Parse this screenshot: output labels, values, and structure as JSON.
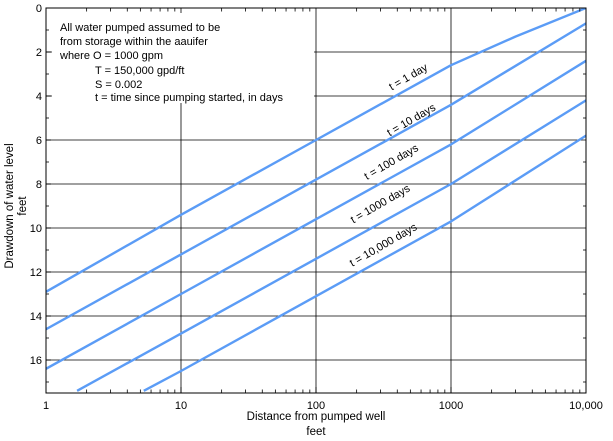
{
  "chart_data": {
    "type": "line",
    "title": "",
    "xlabel_line1": "Distance from pumped well",
    "xlabel_line2": "feet",
    "ylabel_line1": "Drawdown of water level",
    "ylabel_line2": "feet",
    "x_scale": "log",
    "xlim": [
      1,
      10000
    ],
    "ylim": [
      17.5,
      0
    ],
    "y_inverted": true,
    "x_ticks": [
      1,
      10,
      100,
      1000,
      10000
    ],
    "x_tick_labels": [
      "1",
      "10",
      "100",
      "1000",
      "10,000"
    ],
    "y_ticks": [
      0,
      2,
      4,
      6,
      8,
      10,
      12,
      14,
      16
    ],
    "y_tick_labels": [
      "0",
      "2",
      "4",
      "6",
      "8",
      "10",
      "12",
      "14",
      "16"
    ],
    "grid": true,
    "line_color": "#5b9cf6",
    "annotation": [
      "All water pumped assumed to be",
      "from storage within the aauifer",
      "where O = 1000 gpm",
      "T = 150,000 gpd/ft",
      "S = 0.002",
      "t = time since pumping started, in days"
    ],
    "series": [
      {
        "name": "t = 1 day",
        "x": [
          1,
          10,
          100,
          1000,
          3000,
          10000
        ],
        "y": [
          12.9,
          9.4,
          6.0,
          2.6,
          1.3,
          0.0
        ]
      },
      {
        "name": "t = 10 days",
        "x": [
          1,
          10,
          100,
          1000,
          10000
        ],
        "y": [
          14.6,
          11.2,
          7.8,
          4.4,
          0.7
        ]
      },
      {
        "name": "t = 100 days",
        "x": [
          1,
          10,
          100,
          1000,
          10000
        ],
        "y": [
          16.4,
          13.0,
          9.6,
          6.2,
          2.4
        ]
      },
      {
        "name": "t = 1000 days",
        "x": [
          1.7,
          10,
          100,
          1000,
          10000
        ],
        "y": [
          17.4,
          14.8,
          11.4,
          8.0,
          4.2
        ]
      },
      {
        "name": "t = 10,000 days",
        "x": [
          5.3,
          10,
          100,
          1000,
          10000
        ],
        "y": [
          17.4,
          16.5,
          13.1,
          9.7,
          5.8
        ]
      }
    ]
  }
}
